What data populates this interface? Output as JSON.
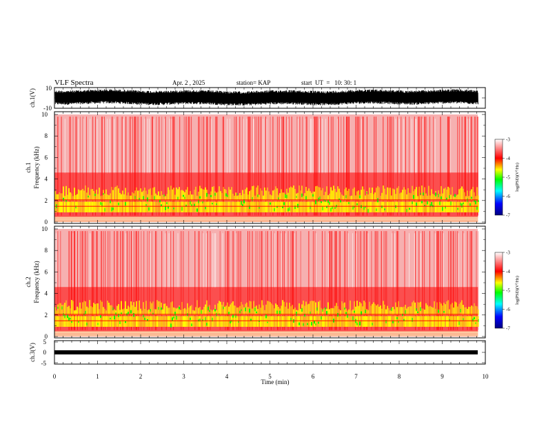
{
  "header": {
    "title": "VLF Spectra",
    "date": "Apr. 2 , 2025",
    "station": "station= KAP",
    "start": "start  UT  =   10: 30: 1"
  },
  "chart_data": [
    {
      "type": "line",
      "panel": "ch1-waveform",
      "ylabel": "ch.1(V)",
      "ylim": [
        -10,
        10
      ],
      "yticks": [
        "10",
        "-10"
      ],
      "xlim": [
        0,
        10
      ],
      "x_data_range": [
        0,
        9.83
      ]
    },
    {
      "type": "heatmap",
      "panel": "ch1-spectrogram",
      "ylabel": "ch.1\nFrequency (kHz)",
      "ylim": [
        0,
        10
      ],
      "yticks": [
        "0",
        "2",
        "4",
        "6",
        "8",
        "10"
      ],
      "xlim": [
        0,
        10
      ],
      "x_data_range": [
        0,
        9.83
      ],
      "colorbar": {
        "label": "log(PSD)(V²/Hz)",
        "range": [
          -7,
          -3
        ],
        "ticks": [
          "-3",
          "-4",
          "-5",
          "-6",
          "-7"
        ],
        "colors": [
          "#00007f",
          "#0000ff",
          "#00ffff",
          "#00ff00",
          "#ffff00",
          "#ff0000",
          "#ffffff"
        ]
      }
    },
    {
      "type": "heatmap",
      "panel": "ch2-spectrogram",
      "ylabel": "ch.2\nFrequency (kHz)",
      "ylim": [
        0,
        10
      ],
      "yticks": [
        "0",
        "2",
        "4",
        "6",
        "8",
        "10"
      ],
      "xlim": [
        0,
        10
      ],
      "x_data_range": [
        0,
        9.83
      ],
      "colorbar": {
        "label": "log(PSD)(V²/Hz)",
        "range": [
          -7,
          -3
        ],
        "ticks": [
          "-3",
          "-4",
          "-5",
          "-6",
          "-7"
        ],
        "colors": [
          "#00007f",
          "#0000ff",
          "#00ffff",
          "#00ff00",
          "#ffff00",
          "#ff0000",
          "#ffffff"
        ]
      }
    },
    {
      "type": "line",
      "panel": "ch3-waveform",
      "ylabel": "ch.3(V)",
      "ylim": [
        -5,
        5
      ],
      "yticks": [
        "5",
        "0",
        "-5"
      ],
      "xlim": [
        0,
        10
      ],
      "x_data_range": [
        0,
        9.83
      ],
      "xlabel": "Time (min)",
      "xticks": [
        "0",
        "1",
        "2",
        "3",
        "4",
        "5",
        "6",
        "7",
        "8",
        "9",
        "10"
      ]
    }
  ]
}
